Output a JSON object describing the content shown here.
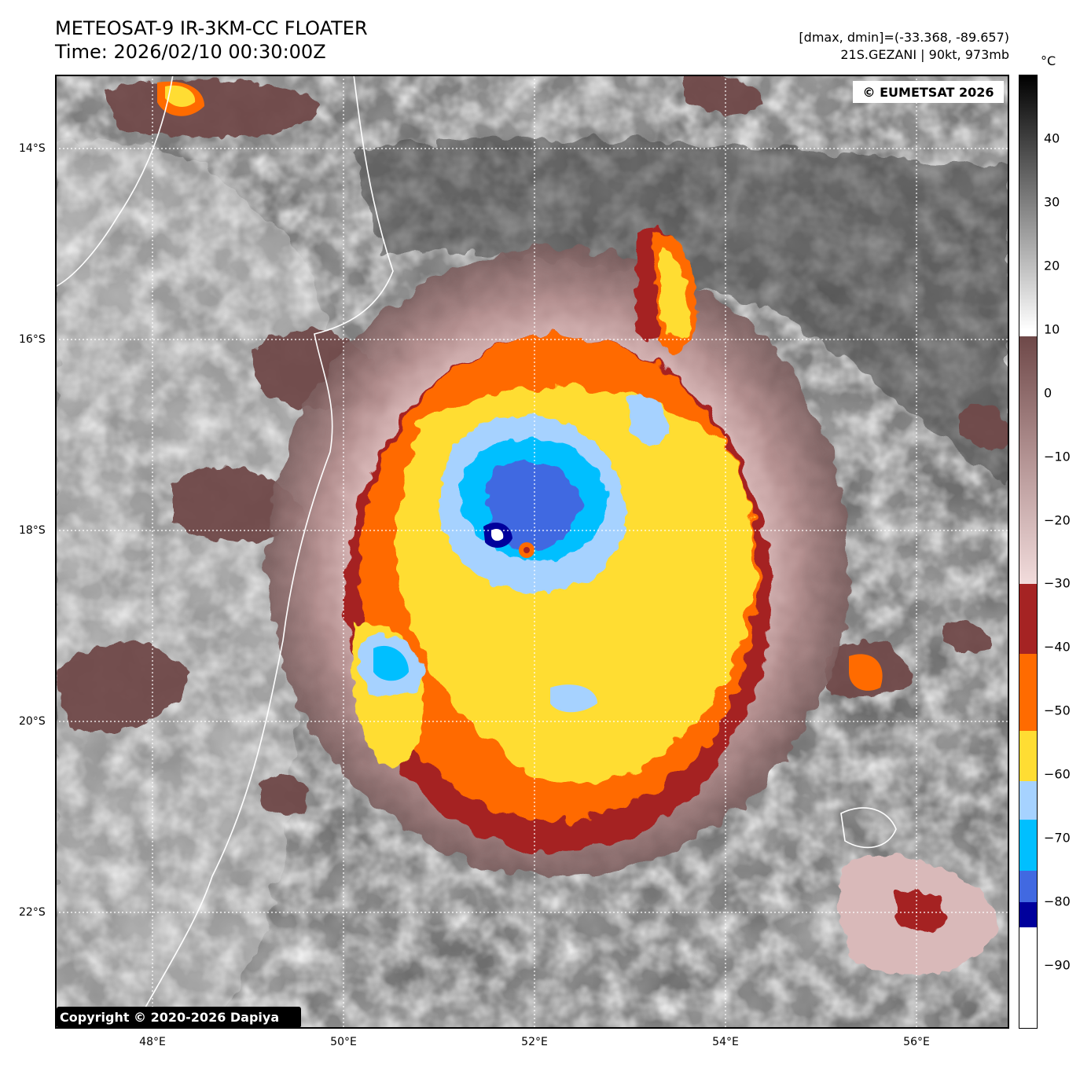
{
  "header": {
    "title_line1": "METEOSAT-9 IR-3KM-CC FLOATER",
    "title_line2": "Time: 2026/02/10 00:30:00Z",
    "info_line1": "[dmax, dmin]=(-33.368, -89.657)",
    "info_line2": "21S.GEZANI | 90kt, 973mb"
  },
  "map": {
    "watermark_top": "© EUMETSAT 2026",
    "watermark_bottom": "Copyright © 2020-2026 Dapiya",
    "latitude_labels": [
      "14°S",
      "16°S",
      "18°S",
      "20°S",
      "22°S"
    ],
    "longitude_labels": [
      "48°E",
      "50°E",
      "52°E",
      "54°E",
      "56°E"
    ],
    "storm_name": "21S.GEZANI",
    "coastline_color": "#ffffff",
    "grid_style": "dotted white"
  },
  "colorbar": {
    "unit": "°C",
    "ticks": [
      "40",
      "30",
      "20",
      "10",
      "0",
      "−10",
      "−20",
      "−30",
      "−40",
      "−50",
      "−60",
      "−70",
      "−80",
      "−90"
    ],
    "tick_values": [
      40,
      30,
      20,
      10,
      0,
      -10,
      -20,
      -30,
      -40,
      -50,
      -60,
      -70,
      -80,
      -90
    ],
    "range": [
      -100,
      50
    ],
    "segments": [
      {
        "from": 10,
        "to": 50,
        "style": "grayscale black-to-white"
      },
      {
        "from": -30,
        "to": 9,
        "style": "brown-to-pink"
      },
      {
        "from": -41,
        "to": -30,
        "color": "#a52323"
      },
      {
        "from": -53,
        "to": -41,
        "color": "#ff6b00"
      },
      {
        "from": -61,
        "to": -53,
        "color": "#ffdd33"
      },
      {
        "from": -67,
        "to": -61,
        "color": "#a6d2ff"
      },
      {
        "from": -75,
        "to": -67,
        "color": "#00bfff"
      },
      {
        "from": -80,
        "to": -75,
        "color": "#4169e1"
      },
      {
        "from": -84,
        "to": -80,
        "color": "#00009c"
      },
      {
        "from": -100,
        "to": -84,
        "color": "#ffffff"
      }
    ]
  }
}
